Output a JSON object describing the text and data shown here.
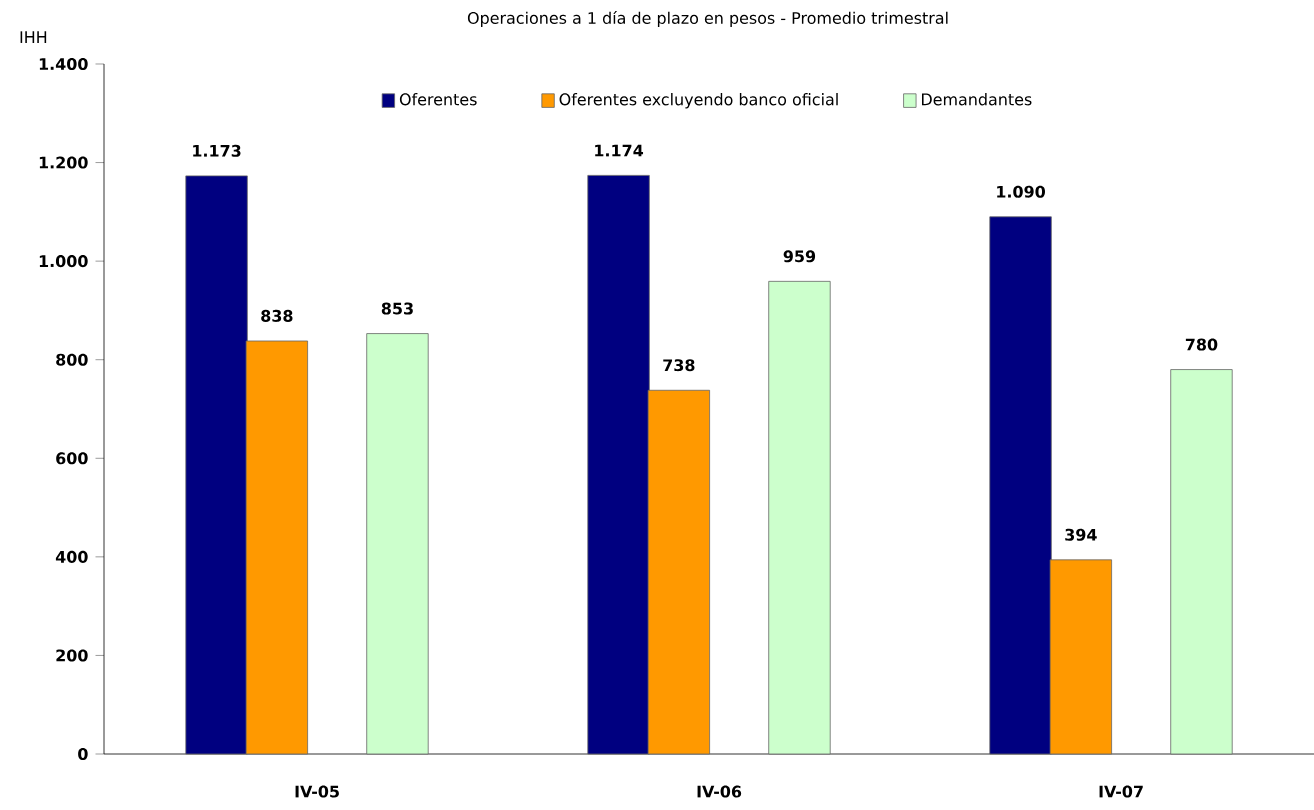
{
  "chart_data": {
    "type": "bar",
    "title": "Operaciones a 1 día de plazo en pesos - Promedio trimestral",
    "ylabel": "IHH",
    "categories": [
      "IV-05",
      "IV-06",
      "IV-07"
    ],
    "series": [
      {
        "name": "Oferentes",
        "color": "#000080",
        "values": [
          1173,
          1174,
          1090
        ],
        "value_labels": [
          "1.173",
          "1.174",
          "1.090"
        ]
      },
      {
        "name": "Oferentes excluyendo banco oficial",
        "color": "#ff9900",
        "values": [
          838,
          738,
          394
        ],
        "value_labels": [
          "838",
          "738",
          "394"
        ]
      },
      {
        "name": "Demandantes",
        "color": "#ccffcc",
        "values": [
          853,
          959,
          780
        ],
        "value_labels": [
          "853",
          "959",
          "780"
        ]
      }
    ],
    "ylim": [
      0,
      1400
    ],
    "yticks": [
      0,
      200,
      400,
      600,
      800,
      {
        "value": 1000,
        "label": "1.000"
      },
      {
        "value": 1200,
        "label": "1.200"
      },
      {
        "value": 1400,
        "label": "1.400"
      }
    ],
    "grid": false,
    "legend": "top"
  }
}
